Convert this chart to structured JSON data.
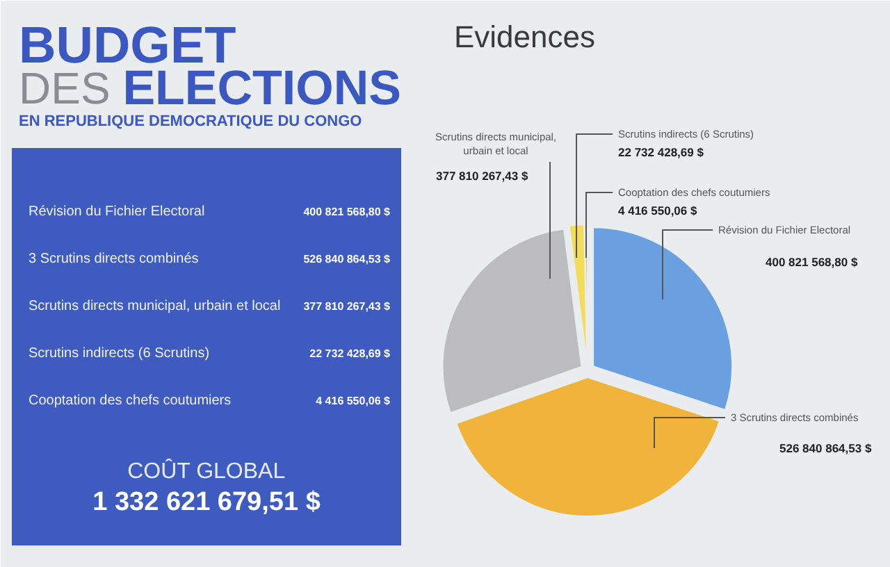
{
  "chart_data": {
    "type": "pie",
    "title": "BUDGET DES ELECTIONS",
    "subtitle": "EN REPUBLIQUE DEMOCRATIQUE DU CONGO",
    "categories": [
      "Révision du Fichier Electoral",
      "3 Scrutins directs combinés",
      "Scrutins directs municipal, urbain et local",
      "Scrutins indirects (6 Scrutins)",
      "Cooptation des chefs coutumiers"
    ],
    "values": [
      400821568.8,
      526840864.53,
      377810267.43,
      22732428.69,
      4416550.06
    ],
    "colors": [
      "#6a9fe0",
      "#f0b43a",
      "#bcbcc0",
      "#f2dc5a",
      "#e3c45c"
    ],
    "value_labels": [
      "400 821 568,80 $",
      "526 840 864,53 $",
      "377 810 267,43 $",
      "22 732 428,69 $",
      "4 416 550,06 $"
    ],
    "annotations": [
      "Evidences",
      "COÛT GLOBAL",
      "1 332 621 679,51 $"
    ]
  }
}
